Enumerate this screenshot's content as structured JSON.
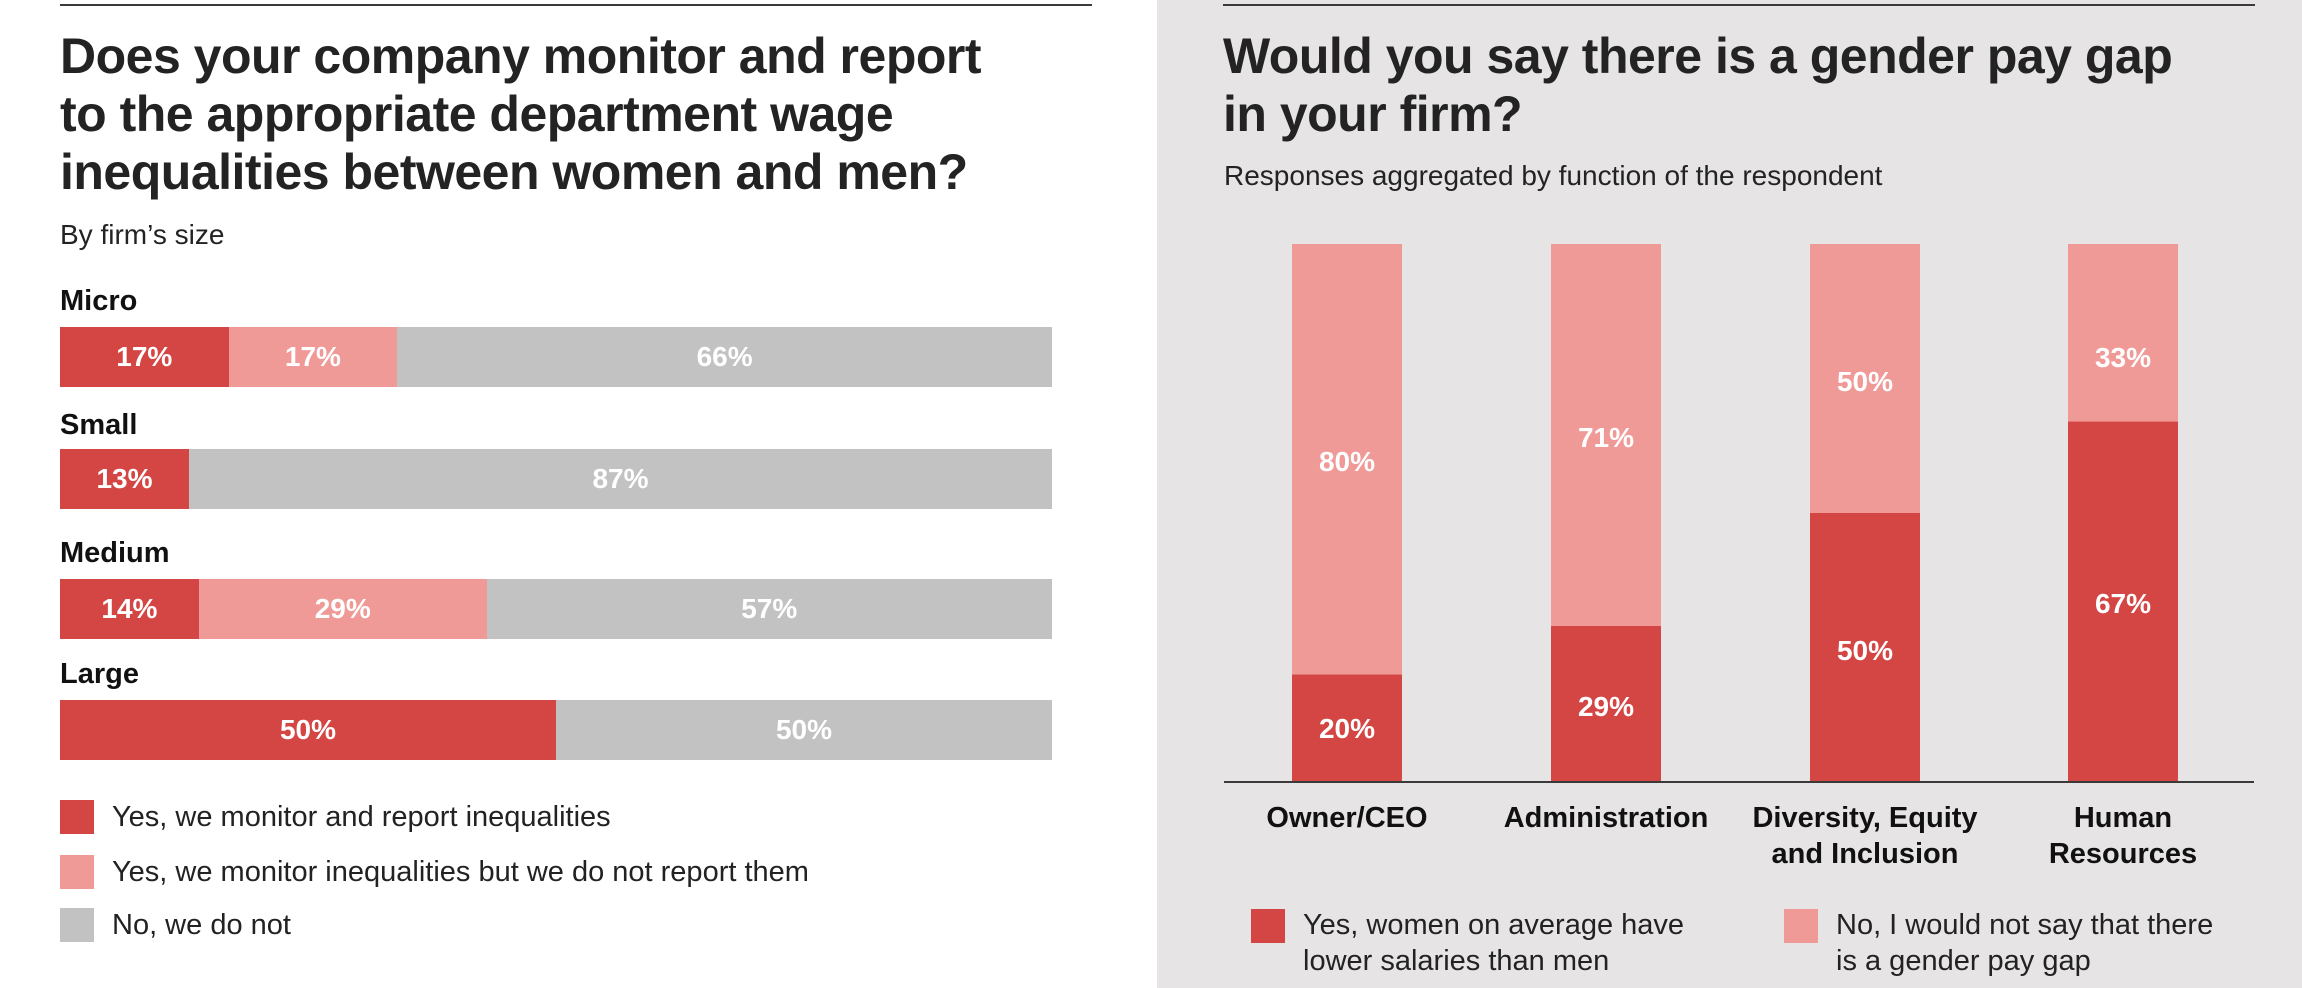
{
  "colors": {
    "yes": "#d44644",
    "yes_light": "#f09a98",
    "no": "#c2c2c2",
    "right_bg": "#e6e4e5"
  },
  "left": {
    "title_lines": [
      "Does your company monitor and report",
      "to the appropriate department wage",
      "inequalities between women and men?"
    ],
    "subtitle": "By firm’s size",
    "legend": [
      {
        "label": "Yes, we monitor and report inequalities",
        "color": "#d44644"
      },
      {
        "label": "Yes, we monitor inequalities but we do not report them",
        "color": "#f09a98"
      },
      {
        "label": "No, we do not",
        "color": "#c2c2c2"
      }
    ]
  },
  "right": {
    "title_lines": [
      "Would you say there is a gender pay gap",
      "in your firm?"
    ],
    "subtitle": "Responses aggregated by function of the respondent",
    "legend": [
      {
        "label_lines": [
          "Yes, women on average have",
          "lower salaries than men"
        ],
        "color": "#d44644"
      },
      {
        "label_lines": [
          "No, I would not say that there",
          "is a gender pay gap"
        ],
        "color": "#f09a98"
      }
    ]
  },
  "chart_data": [
    {
      "type": "bar",
      "orientation": "horizontal",
      "stacked": true,
      "categories": [
        "Micro",
        "Small",
        "Medium",
        "Large"
      ],
      "series": [
        {
          "name": "Yes, we monitor and report inequalities",
          "values": [
            17,
            13,
            14,
            50
          ],
          "labels": [
            "17%",
            "13%",
            "14%",
            "50%"
          ]
        },
        {
          "name": "Yes, we monitor inequalities but we do not report them",
          "values": [
            17,
            0,
            29,
            0
          ],
          "labels": [
            "17%",
            "",
            "29%",
            ""
          ]
        },
        {
          "name": "No, we do not",
          "values": [
            66,
            87,
            57,
            50
          ],
          "labels": [
            "66%",
            "87%",
            "57%",
            "50%"
          ]
        }
      ],
      "xlim": [
        0,
        100
      ],
      "legend_position": "bottom"
    },
    {
      "type": "bar",
      "orientation": "vertical",
      "stacked": true,
      "categories": [
        [
          "Owner/CEO"
        ],
        [
          "Administration"
        ],
        [
          "Diversity, Equity",
          "and Inclusion"
        ],
        [
          "Human",
          "Resources"
        ]
      ],
      "series": [
        {
          "name": "Yes, women on average have lower salaries than men",
          "values": [
            20,
            29,
            50,
            67
          ],
          "labels": [
            "20%",
            "29%",
            "50%",
            "67%"
          ]
        },
        {
          "name": "No, I would not say that there is a gender pay gap",
          "values": [
            80,
            71,
            50,
            33
          ],
          "labels": [
            "80%",
            "71%",
            "50%",
            "33%"
          ]
        }
      ],
      "ylim": [
        0,
        100
      ],
      "legend_position": "bottom"
    }
  ]
}
